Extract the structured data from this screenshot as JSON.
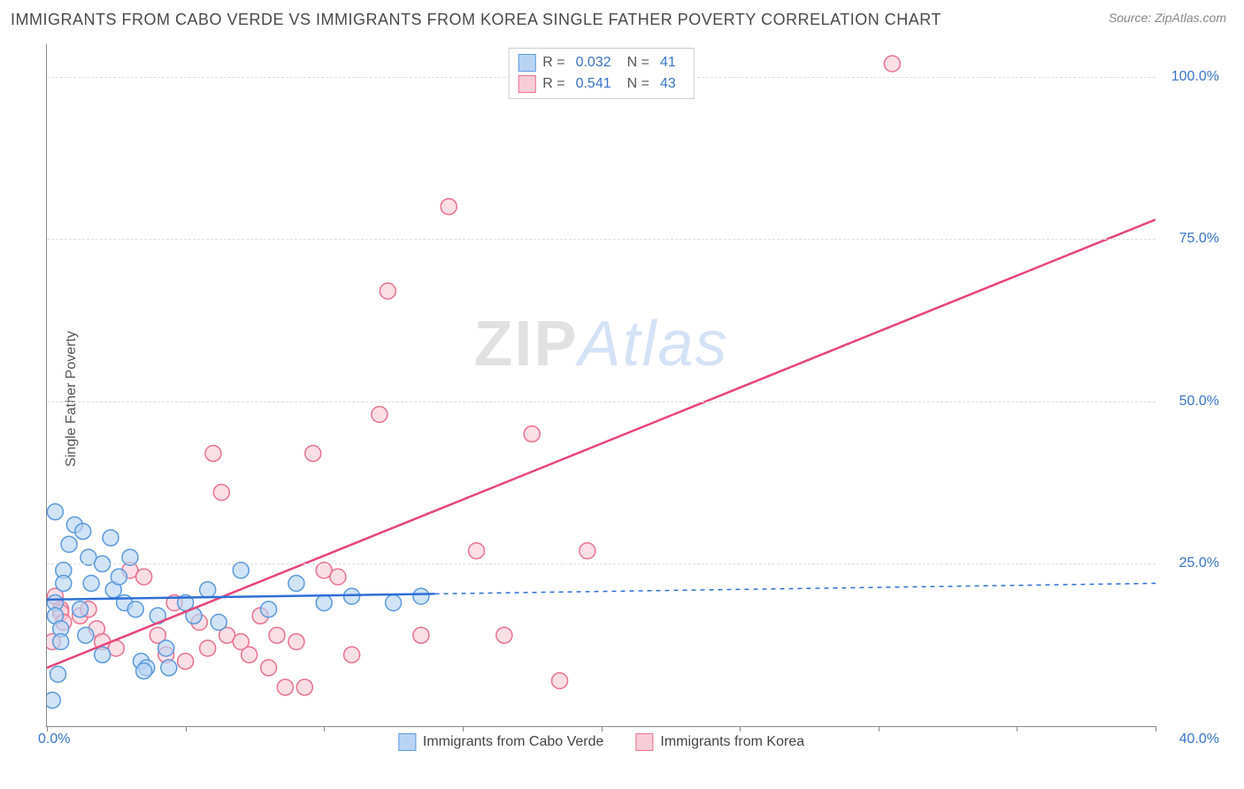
{
  "title": "IMMIGRANTS FROM CABO VERDE VS IMMIGRANTS FROM KOREA SINGLE FATHER POVERTY CORRELATION CHART",
  "source": "Source: ZipAtlas.com",
  "ylabel": "Single Father Poverty",
  "watermark_a": "ZIP",
  "watermark_b": "Atlas",
  "chart": {
    "type": "scatter",
    "xlim": [
      0,
      40
    ],
    "ylim": [
      0,
      105
    ],
    "ytick_vals": [
      25,
      50,
      75,
      100
    ],
    "ytick_labels": [
      "25.0%",
      "50.0%",
      "75.0%",
      "100.0%"
    ],
    "xtick_vals": [
      0,
      5,
      10,
      15,
      20,
      25,
      30,
      35,
      40
    ],
    "xtick_first_label": "0.0%",
    "xtick_last_label": "40.0%",
    "background_color": "#ffffff",
    "grid_color": "#dddddd",
    "axis_color": "#888888",
    "marker_radius": 9,
    "marker_stroke_width": 1.5,
    "line_width": 2.5,
    "dash_pattern": "5,5",
    "series": [
      {
        "name": "Immigrants from Cabo Verde",
        "fill": "#b9d4f2",
        "stroke": "#5a99dd",
        "line_color": "#2e6fd6",
        "R": "0.032",
        "N": "41",
        "trend": {
          "x1": 0,
          "y1": 19.5,
          "x2_solid": 14,
          "x2": 40,
          "y2": 22
        },
        "points": [
          [
            0.3,
            33
          ],
          [
            0.6,
            24
          ],
          [
            0.6,
            22
          ],
          [
            0.8,
            28
          ],
          [
            0.3,
            19
          ],
          [
            0.3,
            17
          ],
          [
            1.0,
            31
          ],
          [
            1.3,
            30
          ],
          [
            1.5,
            26
          ],
          [
            1.6,
            22
          ],
          [
            0.5,
            15
          ],
          [
            0.5,
            13
          ],
          [
            0.4,
            8
          ],
          [
            0.2,
            4
          ],
          [
            1.2,
            18
          ],
          [
            1.4,
            14
          ],
          [
            2.0,
            25
          ],
          [
            2.3,
            29
          ],
          [
            2.4,
            21
          ],
          [
            2.6,
            23
          ],
          [
            2.8,
            19
          ],
          [
            3.0,
            26
          ],
          [
            3.2,
            18
          ],
          [
            3.4,
            10
          ],
          [
            3.6,
            9
          ],
          [
            3.5,
            8.5
          ],
          [
            4.0,
            17
          ],
          [
            4.3,
            12
          ],
          [
            4.4,
            9
          ],
          [
            2.0,
            11
          ],
          [
            5.0,
            19
          ],
          [
            5.3,
            17
          ],
          [
            5.8,
            21
          ],
          [
            6.2,
            16
          ],
          [
            7.0,
            24
          ],
          [
            8.0,
            18
          ],
          [
            9.0,
            22
          ],
          [
            10.0,
            19
          ],
          [
            11.0,
            20
          ],
          [
            12.5,
            19
          ],
          [
            13.5,
            20
          ]
        ]
      },
      {
        "name": "Immigrants from Korea",
        "fill": "#f9cdd8",
        "stroke": "#e9718f",
        "line_color": "#e6457a",
        "R": "0.541",
        "N": "43",
        "trend": {
          "x1": 0,
          "y1": 9,
          "x2_solid": 40,
          "x2": 40,
          "y2": 78
        },
        "points": [
          [
            0.3,
            20
          ],
          [
            0.5,
            18
          ],
          [
            0.5,
            17.5
          ],
          [
            0.2,
            13
          ],
          [
            0.6,
            16
          ],
          [
            1.2,
            17
          ],
          [
            1.5,
            18
          ],
          [
            1.8,
            15
          ],
          [
            2.0,
            13
          ],
          [
            2.5,
            12
          ],
          [
            3.0,
            24
          ],
          [
            3.5,
            23
          ],
          [
            4.0,
            14
          ],
          [
            4.3,
            11
          ],
          [
            4.6,
            19
          ],
          [
            5.0,
            10
          ],
          [
            5.5,
            16
          ],
          [
            5.8,
            12
          ],
          [
            6.0,
            42
          ],
          [
            6.3,
            36
          ],
          [
            6.5,
            14
          ],
          [
            7.0,
            13
          ],
          [
            7.3,
            11
          ],
          [
            7.7,
            17
          ],
          [
            8.0,
            9
          ],
          [
            8.3,
            14
          ],
          [
            8.6,
            6
          ],
          [
            9.0,
            13
          ],
          [
            9.3,
            6
          ],
          [
            9.6,
            42
          ],
          [
            10.0,
            24
          ],
          [
            10.5,
            23
          ],
          [
            11.0,
            11
          ],
          [
            12.0,
            48
          ],
          [
            12.3,
            67
          ],
          [
            13.5,
            14
          ],
          [
            14.5,
            80
          ],
          [
            15.5,
            27
          ],
          [
            16.5,
            14
          ],
          [
            17.5,
            45
          ],
          [
            18.5,
            7
          ],
          [
            19.5,
            27
          ],
          [
            30.5,
            102
          ]
        ]
      }
    ]
  },
  "legend_top": {
    "r_label": "R =",
    "n_label": "N ="
  }
}
